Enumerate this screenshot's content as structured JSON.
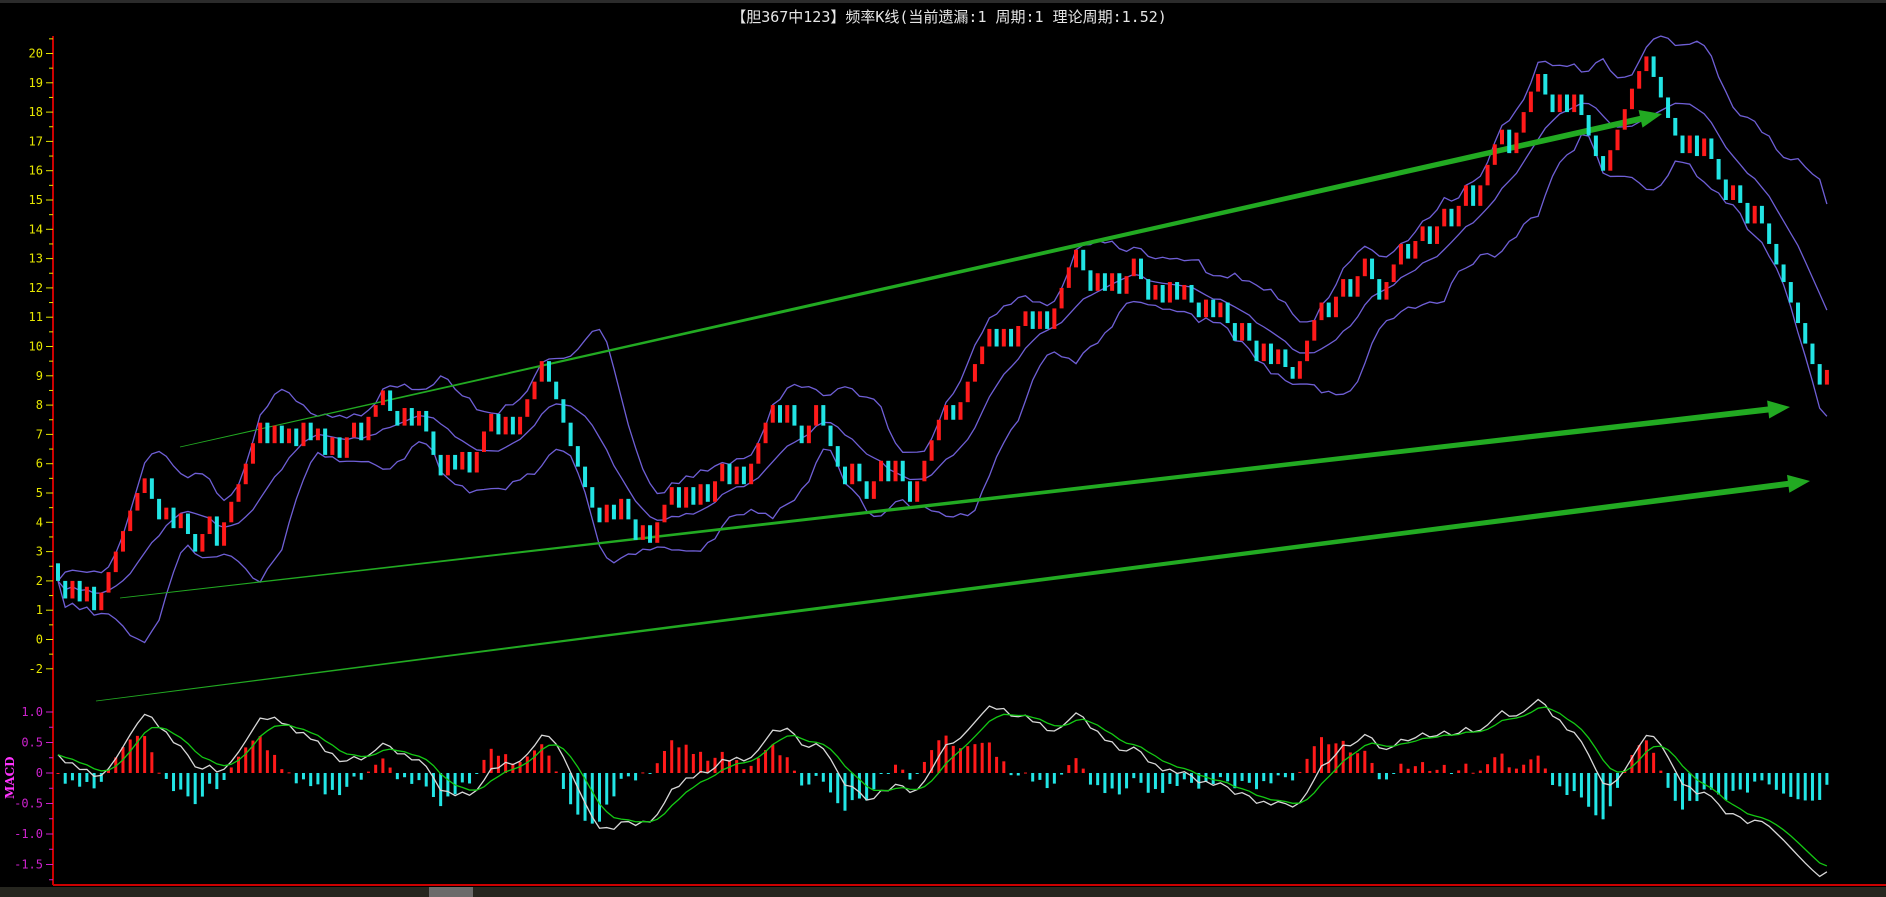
{
  "title": "【胆367中123】频率K线(当前遗漏:1 周期:1 理论周期:1.52)",
  "colors": {
    "up": "#ff1a1a",
    "down": "#22e5e5",
    "boll": "#6f5fd6",
    "dif": "#d8d8d8",
    "dea": "#14c814",
    "trend": "#22aa22",
    "axis": "#cc0000",
    "price_tick": "#e6e600",
    "macd_tick": "#cc22cc"
  },
  "chart_data": [
    {
      "type": "candlestick",
      "name": "频率K线",
      "y_tick_labels": [
        "20",
        "19",
        "18",
        "17",
        "16",
        "15",
        "14",
        "13",
        "12",
        "11",
        "10",
        "9",
        "8",
        "7",
        "6",
        "5",
        "4",
        "3",
        "2",
        "1",
        "0",
        "-2"
      ],
      "ylim": [
        -2,
        20.5
      ],
      "overlays": [
        "bollinger-upper",
        "bollinger-middle",
        "bollinger-lower"
      ],
      "annotations": [
        "trend-line-upper-arrow",
        "trend-line-middle-arrow",
        "trend-line-lower-arrow"
      ],
      "values": [
        2.6,
        2.0,
        1.4,
        2.0,
        1.3,
        1.8,
        1.0,
        1.6,
        2.3,
        3.0,
        3.7,
        4.4,
        5.0,
        5.5,
        4.8,
        4.1,
        4.5,
        3.8,
        4.3,
        3.6,
        3.0,
        3.6,
        4.2,
        3.2,
        4.0,
        4.7,
        5.3,
        6.0,
        6.7,
        7.4,
        6.7,
        7.3,
        6.7,
        7.2,
        6.6,
        7.4,
        6.8,
        7.2,
        6.3,
        6.9,
        6.2,
        6.9,
        7.4,
        6.8,
        7.6,
        8.0,
        8.5,
        7.8,
        7.3,
        7.9,
        7.3,
        7.8,
        7.1,
        6.3,
        5.6,
        6.3,
        5.8,
        6.4,
        5.7,
        6.4,
        7.1,
        7.7,
        7.0,
        7.6,
        7.0,
        7.6,
        8.2,
        8.8,
        9.5,
        8.8,
        8.2,
        7.4,
        6.6,
        5.9,
        5.2,
        4.5,
        4.0,
        4.6,
        4.1,
        4.8,
        4.1,
        3.4,
        3.9,
        3.3,
        4.0,
        4.6,
        5.2,
        4.5,
        5.2,
        4.6,
        5.3,
        4.7,
        5.4,
        6.0,
        5.3,
        5.9,
        5.3,
        6.0,
        6.7,
        7.4,
        8.0,
        7.4,
        8.0,
        7.3,
        6.7,
        7.3,
        8.0,
        7.3,
        6.6,
        5.9,
        5.3,
        6.0,
        5.4,
        4.8,
        5.4,
        6.1,
        5.4,
        6.1,
        5.4,
        4.7,
        5.4,
        6.1,
        6.8,
        7.5,
        8.0,
        7.5,
        8.1,
        8.8,
        9.4,
        10.0,
        10.6,
        10.0,
        10.6,
        10.0,
        10.7,
        11.2,
        10.6,
        11.2,
        10.6,
        11.3,
        12.0,
        12.7,
        13.3,
        12.6,
        11.9,
        12.5,
        11.9,
        12.5,
        11.8,
        12.4,
        13.0,
        12.3,
        11.6,
        12.1,
        11.5,
        12.2,
        11.6,
        12.1,
        11.5,
        11.0,
        11.6,
        11.0,
        11.5,
        10.8,
        10.2,
        10.8,
        10.2,
        9.5,
        10.1,
        9.4,
        9.9,
        9.3,
        8.9,
        9.5,
        10.2,
        10.9,
        11.5,
        11.0,
        11.7,
        12.3,
        11.7,
        12.4,
        13.0,
        12.3,
        11.6,
        12.2,
        12.8,
        13.5,
        13.0,
        13.6,
        14.1,
        13.5,
        14.1,
        14.7,
        14.1,
        14.8,
        15.5,
        14.8,
        15.5,
        16.2,
        16.9,
        17.4,
        16.6,
        17.3,
        18.0,
        18.7,
        19.3,
        18.6,
        18.0,
        18.6,
        18.0,
        18.6,
        17.9,
        17.2,
        16.5,
        16.0,
        16.7,
        17.4,
        18.1,
        18.8,
        19.4,
        19.9,
        19.2,
        18.5,
        17.8,
        17.2,
        16.6,
        17.2,
        16.5,
        17.1,
        16.4,
        15.7,
        15.0,
        15.5,
        14.9,
        14.2,
        14.8,
        14.2,
        13.5,
        12.8,
        12.2,
        11.5,
        10.8,
        10.1,
        9.4,
        8.7,
        9.2
      ]
    },
    {
      "type": "bar+line",
      "name": "MACD",
      "y_tick_labels": [
        "1.0",
        "0.5",
        "0",
        "-0.5",
        "-1.0",
        "-1.5"
      ],
      "ylim": [
        -1.75,
        1.2
      ],
      "series": [
        "DIF",
        "DEA",
        "MACD histogram"
      ]
    }
  ],
  "macd_label": "MACD",
  "scrollbar": {
    "label": ""
  }
}
